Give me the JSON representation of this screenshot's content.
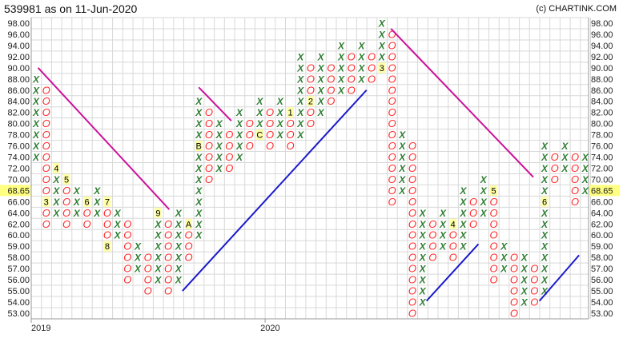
{
  "header": {
    "title": "539981 as on 11-Jun-2020",
    "copyright": "(c) CHARTINK.COM"
  },
  "chart_data": {
    "type": "point-and-figure",
    "price_levels": [
      98,
      96,
      94,
      92,
      90,
      88,
      86,
      84,
      82,
      80,
      78,
      76,
      74,
      72,
      70,
      68,
      66,
      64,
      62,
      60,
      59,
      58,
      57,
      56,
      55,
      54,
      53
    ],
    "y_tick_labels": [
      "98.00",
      "96.00",
      "94.00",
      "92.00",
      "90.00",
      "88.00",
      "86.00",
      "84.00",
      "82.00",
      "80.00",
      "78.00",
      "76.00",
      "74.00",
      "72.00",
      "70.00",
      "68.65",
      "66.00",
      "64.00",
      "62.00",
      "60.00",
      "59.00",
      "58.00",
      "57.00",
      "56.00",
      "55.00",
      "54.00",
      "53.00"
    ],
    "current_price": "68.65",
    "x_tick_labels": [
      {
        "label": "2019",
        "column": 1
      },
      {
        "label": "2020",
        "column": 24
      }
    ],
    "colors": {
      "x": "#2e7d32",
      "o": "#ff2a2a",
      "label_bg": "#ffffa8",
      "resistance": "#cc1199",
      "support": "#1a1acc",
      "grid": "#d8d8d8"
    },
    "columns": [
      {
        "t": "X",
        "lo": 74,
        "hi": 88
      },
      {
        "t": "O",
        "lo": 62,
        "hi": 86,
        "labels": {
          "66": "3"
        }
      },
      {
        "t": "X",
        "lo": 64,
        "hi": 72,
        "labels": {
          "72": "4"
        }
      },
      {
        "t": "O",
        "lo": 62,
        "hi": 70,
        "labels": {
          "70": "5"
        }
      },
      {
        "t": "X",
        "lo": 64,
        "hi": 68
      },
      {
        "t": "O",
        "lo": 62,
        "hi": 66,
        "labels": {
          "66": "6"
        }
      },
      {
        "t": "X",
        "lo": 64,
        "hi": 68
      },
      {
        "t": "O",
        "lo": 59,
        "hi": 66,
        "labels": {
          "66": "7",
          "59": "8"
        }
      },
      {
        "t": "X",
        "lo": 60,
        "hi": 64
      },
      {
        "t": "O",
        "lo": 56,
        "hi": 62
      },
      {
        "t": "X",
        "lo": 57,
        "hi": 59
      },
      {
        "t": "O",
        "lo": 55,
        "hi": 58
      },
      {
        "t": "X",
        "lo": 56,
        "hi": 64,
        "labels": {
          "64": "9"
        }
      },
      {
        "t": "O",
        "lo": 55,
        "hi": 62
      },
      {
        "t": "X",
        "lo": 56,
        "hi": 64
      },
      {
        "t": "O",
        "lo": 58,
        "hi": 62,
        "labels": {
          "62": "A"
        }
      },
      {
        "t": "X",
        "lo": 60,
        "hi": 84,
        "labels": {
          "76": "B"
        }
      },
      {
        "t": "O",
        "lo": 70,
        "hi": 82
      },
      {
        "t": "X",
        "lo": 72,
        "hi": 80
      },
      {
        "t": "O",
        "lo": 72,
        "hi": 78
      },
      {
        "t": "X",
        "lo": 74,
        "hi": 82
      },
      {
        "t": "O",
        "lo": 76,
        "hi": 80
      },
      {
        "t": "X",
        "lo": 78,
        "hi": 84,
        "labels": {
          "78": "C"
        }
      },
      {
        "t": "O",
        "lo": 76,
        "hi": 82
      },
      {
        "t": "X",
        "lo": 78,
        "hi": 84
      },
      {
        "t": "O",
        "lo": 76,
        "hi": 82,
        "labels": {
          "82": "1"
        }
      },
      {
        "t": "X",
        "lo": 78,
        "hi": 92
      },
      {
        "t": "O",
        "lo": 80,
        "hi": 90,
        "labels": {
          "84": "2"
        }
      },
      {
        "t": "X",
        "lo": 82,
        "hi": 92
      },
      {
        "t": "O",
        "lo": 84,
        "hi": 90
      },
      {
        "t": "X",
        "lo": 86,
        "hi": 94
      },
      {
        "t": "O",
        "lo": 86,
        "hi": 92
      },
      {
        "t": "X",
        "lo": 88,
        "hi": 94
      },
      {
        "t": "O",
        "lo": 88,
        "hi": 92
      },
      {
        "t": "X",
        "lo": 90,
        "hi": 98,
        "labels": {
          "90": "3"
        }
      },
      {
        "t": "O",
        "lo": 66,
        "hi": 96
      },
      {
        "t": "X",
        "lo": 68,
        "hi": 78
      },
      {
        "t": "O",
        "lo": 53,
        "hi": 76
      },
      {
        "t": "X",
        "lo": 54,
        "hi": 64
      },
      {
        "t": "O",
        "lo": 58,
        "hi": 62
      },
      {
        "t": "X",
        "lo": 59,
        "hi": 64
      },
      {
        "t": "O",
        "lo": 58,
        "hi": 62,
        "labels": {
          "62": "4"
        }
      },
      {
        "t": "X",
        "lo": 59,
        "hi": 68
      },
      {
        "t": "O",
        "lo": 62,
        "hi": 66
      },
      {
        "t": "X",
        "lo": 64,
        "hi": 70
      },
      {
        "t": "O",
        "lo": 56,
        "hi": 68,
        "labels": {
          "68": "5"
        }
      },
      {
        "t": "X",
        "lo": 57,
        "hi": 59
      },
      {
        "t": "O",
        "lo": 53,
        "hi": 58
      },
      {
        "t": "X",
        "lo": 54,
        "hi": 58
      },
      {
        "t": "O",
        "lo": 54,
        "hi": 57
      },
      {
        "t": "X",
        "lo": 55,
        "hi": 76,
        "labels": {
          "66": "6"
        }
      },
      {
        "t": "O",
        "lo": 70,
        "hi": 74
      },
      {
        "t": "X",
        "lo": 72,
        "hi": 76
      },
      {
        "t": "O",
        "lo": 66,
        "hi": 74
      },
      {
        "t": "X",
        "lo": 68,
        "hi": 74
      }
    ],
    "trend_lines": [
      {
        "kind": "resistance",
        "from": [
          1.2,
          90
        ],
        "to": [
          14.1,
          64.6
        ]
      },
      {
        "kind": "resistance",
        "from": [
          17,
          86.5
        ],
        "to": [
          20.2,
          80.5
        ]
      },
      {
        "kind": "resistance",
        "from": [
          35.9,
          97
        ],
        "to": [
          49.9,
          70.4
        ]
      },
      {
        "kind": "support",
        "from": [
          15.4,
          55
        ],
        "to": [
          33.5,
          86
        ]
      },
      {
        "kind": "support",
        "from": [
          39.4,
          54.1
        ],
        "to": [
          44.5,
          59.2
        ]
      },
      {
        "kind": "support",
        "from": [
          50.5,
          54.1
        ],
        "to": [
          54.4,
          58.2
        ]
      }
    ]
  }
}
